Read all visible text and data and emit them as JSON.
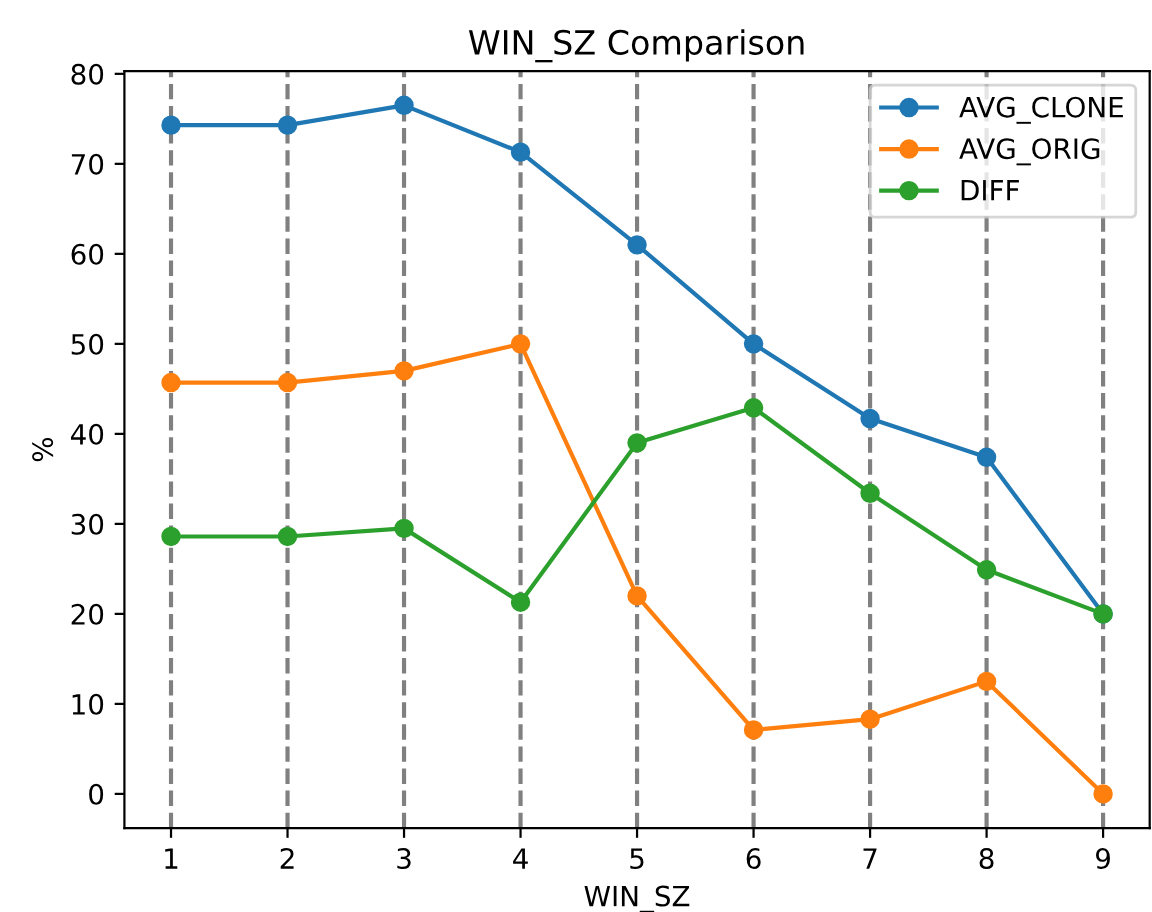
{
  "chart_data": {
    "type": "line",
    "title": "WIN_SZ Comparison",
    "xlabel": "WIN_SZ",
    "ylabel": "%",
    "x": [
      1,
      2,
      3,
      4,
      5,
      6,
      7,
      8,
      9
    ],
    "series": [
      {
        "name": "AVG_CLONE",
        "color": "#1f77b4",
        "values": [
          74.3,
          74.3,
          76.5,
          71.3,
          61,
          50,
          41.7,
          37.4,
          20
        ]
      },
      {
        "name": "AVG_ORIG",
        "color": "#ff7f0e",
        "values": [
          45.7,
          45.7,
          47,
          50,
          22,
          7.1,
          8.3,
          12.5,
          0
        ]
      },
      {
        "name": "DIFF",
        "color": "#2ca02c",
        "values": [
          28.6,
          28.6,
          29.5,
          21.3,
          39,
          42.9,
          33.4,
          24.9,
          20
        ]
      }
    ],
    "xlim": [
      0.6,
      9.4
    ],
    "ylim": [
      -3.8,
      80.3
    ],
    "xticks": [
      1,
      2,
      3,
      4,
      5,
      6,
      7,
      8,
      9
    ],
    "yticks": [
      0,
      10,
      20,
      30,
      40,
      50,
      60,
      70,
      80
    ],
    "ref_lines": [
      {
        "axis": "x",
        "value": 1,
        "color": "#808080",
        "line_style": "dashed"
      },
      {
        "axis": "x",
        "value": 2,
        "color": "#808080",
        "line_style": "dashed"
      },
      {
        "axis": "x",
        "value": 3,
        "color": "#808080",
        "line_style": "dashed"
      },
      {
        "axis": "x",
        "value": 4,
        "color": "#808080",
        "line_style": "dashed"
      },
      {
        "axis": "x",
        "value": 5,
        "color": "#808080",
        "line_style": "dashed"
      },
      {
        "axis": "x",
        "value": 6,
        "color": "#808080",
        "line_style": "dashed"
      },
      {
        "axis": "x",
        "value": 7,
        "color": "#808080",
        "line_style": "dashed"
      },
      {
        "axis": "x",
        "value": 8,
        "color": "#808080",
        "line_style": "dashed"
      },
      {
        "axis": "x",
        "value": 9,
        "color": "#808080",
        "line_style": "dashed"
      }
    ],
    "legend": "top right",
    "marker": "circle",
    "line_style": "solid",
    "grid": false
  }
}
